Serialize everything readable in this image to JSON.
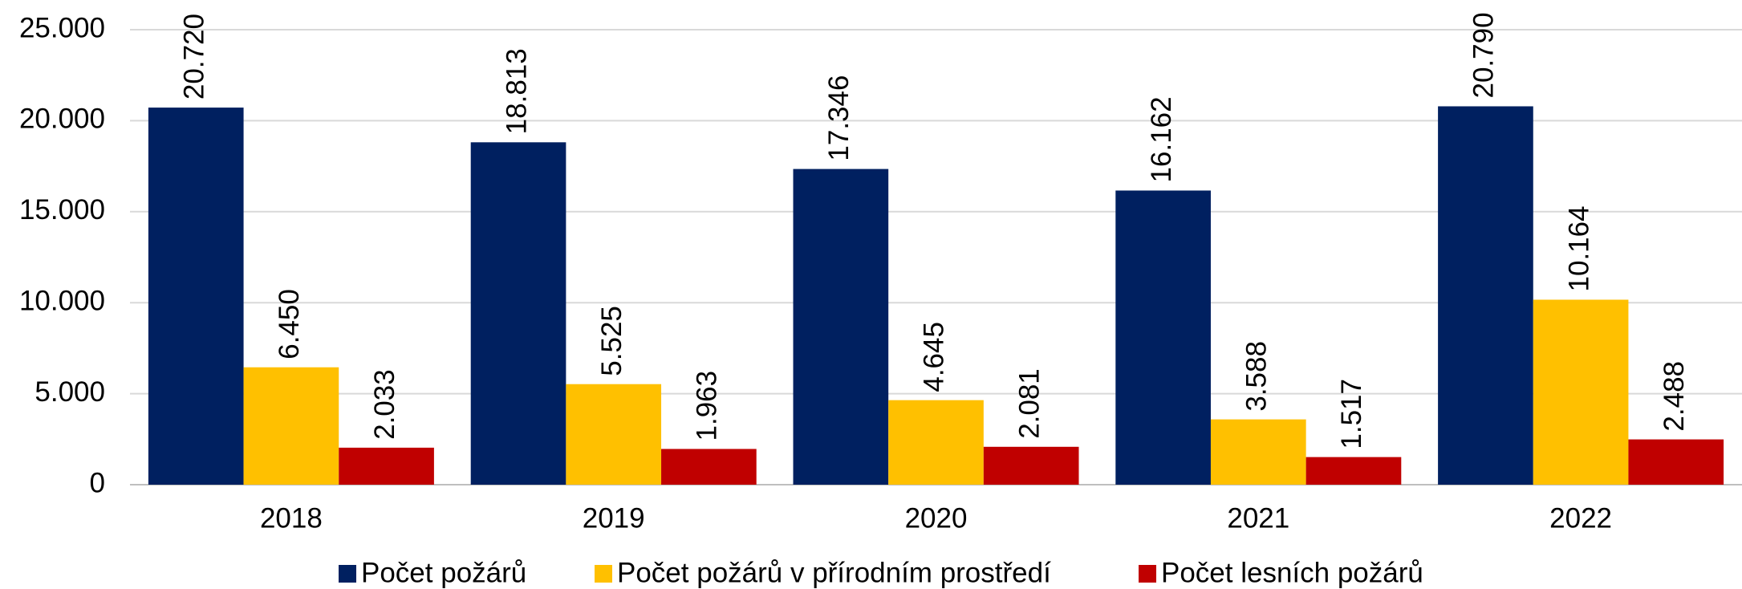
{
  "chart_data": {
    "type": "bar",
    "categories": [
      "2018",
      "2019",
      "2020",
      "2021",
      "2022"
    ],
    "series": [
      {
        "name": "Počet požárů",
        "color": "#002060",
        "values": [
          20720,
          18813,
          17346,
          16162,
          20790
        ],
        "value_labels": [
          "20.720",
          "18.813",
          "17.346",
          "16.162",
          "20.790"
        ]
      },
      {
        "name": "Počet požárů v přírodním prostředí",
        "color": "#ffc000",
        "values": [
          6450,
          5525,
          4645,
          3588,
          10164
        ],
        "value_labels": [
          "6.450",
          "5.525",
          "4.645",
          "3.588",
          "10.164"
        ]
      },
      {
        "name": "Počet lesních požárů",
        "color": "#c00000",
        "values": [
          2033,
          1963,
          2081,
          1517,
          2488
        ],
        "value_labels": [
          "2.033",
          "1.963",
          "2.081",
          "1.517",
          "2.488"
        ]
      }
    ],
    "ylim": [
      0,
      25000
    ],
    "yticks": [
      0,
      {
        "value": 5000,
        "label": "5.000"
      },
      {
        "value": 10000,
        "label": "10.000"
      },
      {
        "value": 15000,
        "label": "15.000"
      },
      {
        "value": 20000,
        "label": "20.000"
      },
      {
        "value": 25000,
        "label": "25.000"
      }
    ],
    "grid": true,
    "legend": "bottom"
  }
}
